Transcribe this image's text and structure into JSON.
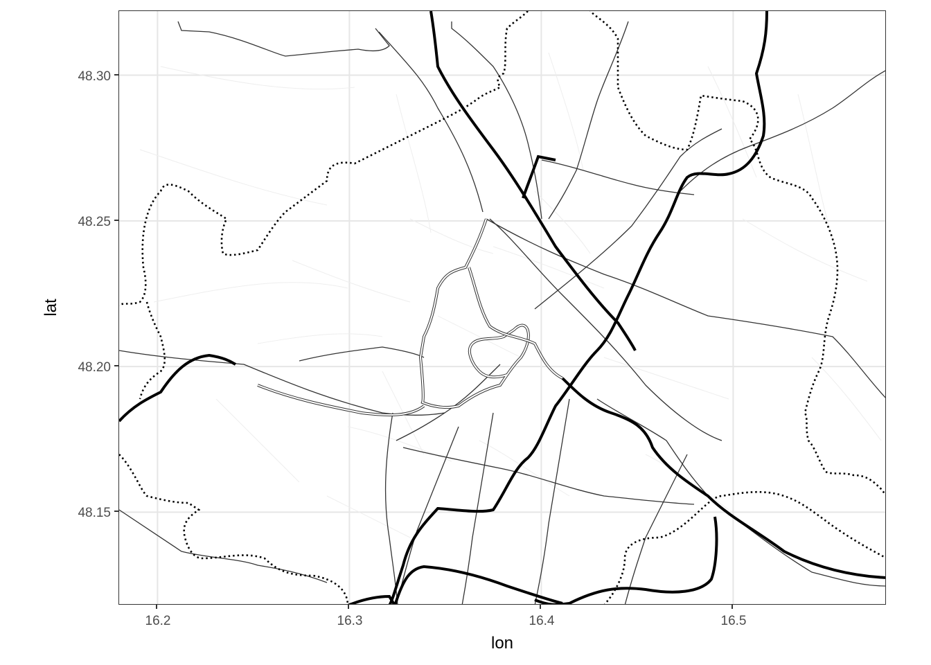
{
  "chart_data": {
    "type": "map",
    "xlabel": "lon",
    "ylabel": "lat",
    "xlim": [
      16.18,
      16.58
    ],
    "ylim": [
      48.118,
      48.322
    ],
    "x_ticks": [
      "16.2",
      "16.3",
      "16.4",
      "16.5"
    ],
    "y_ticks": [
      "48.15",
      "48.20",
      "48.25",
      "48.30"
    ],
    "x_tick_values": [
      16.2,
      16.3,
      16.4,
      16.5
    ],
    "y_tick_values": [
      48.15,
      48.2,
      48.25,
      48.3
    ],
    "grid": true,
    "theme": "bw",
    "layers": [
      {
        "kind": "minor-streets",
        "style": "thin-light"
      },
      {
        "kind": "main-roads",
        "style": "thin-dark"
      },
      {
        "kind": "highways",
        "style": "thick-solid"
      },
      {
        "kind": "boundary",
        "style": "dotted"
      },
      {
        "kind": "ring-road",
        "style": "double-line"
      }
    ],
    "colors": {
      "grid": "#e6e6e6",
      "minor_streets": "#eeeeee",
      "main_roads": "#333333",
      "highways": "#000000",
      "boundary": "#000000"
    }
  }
}
